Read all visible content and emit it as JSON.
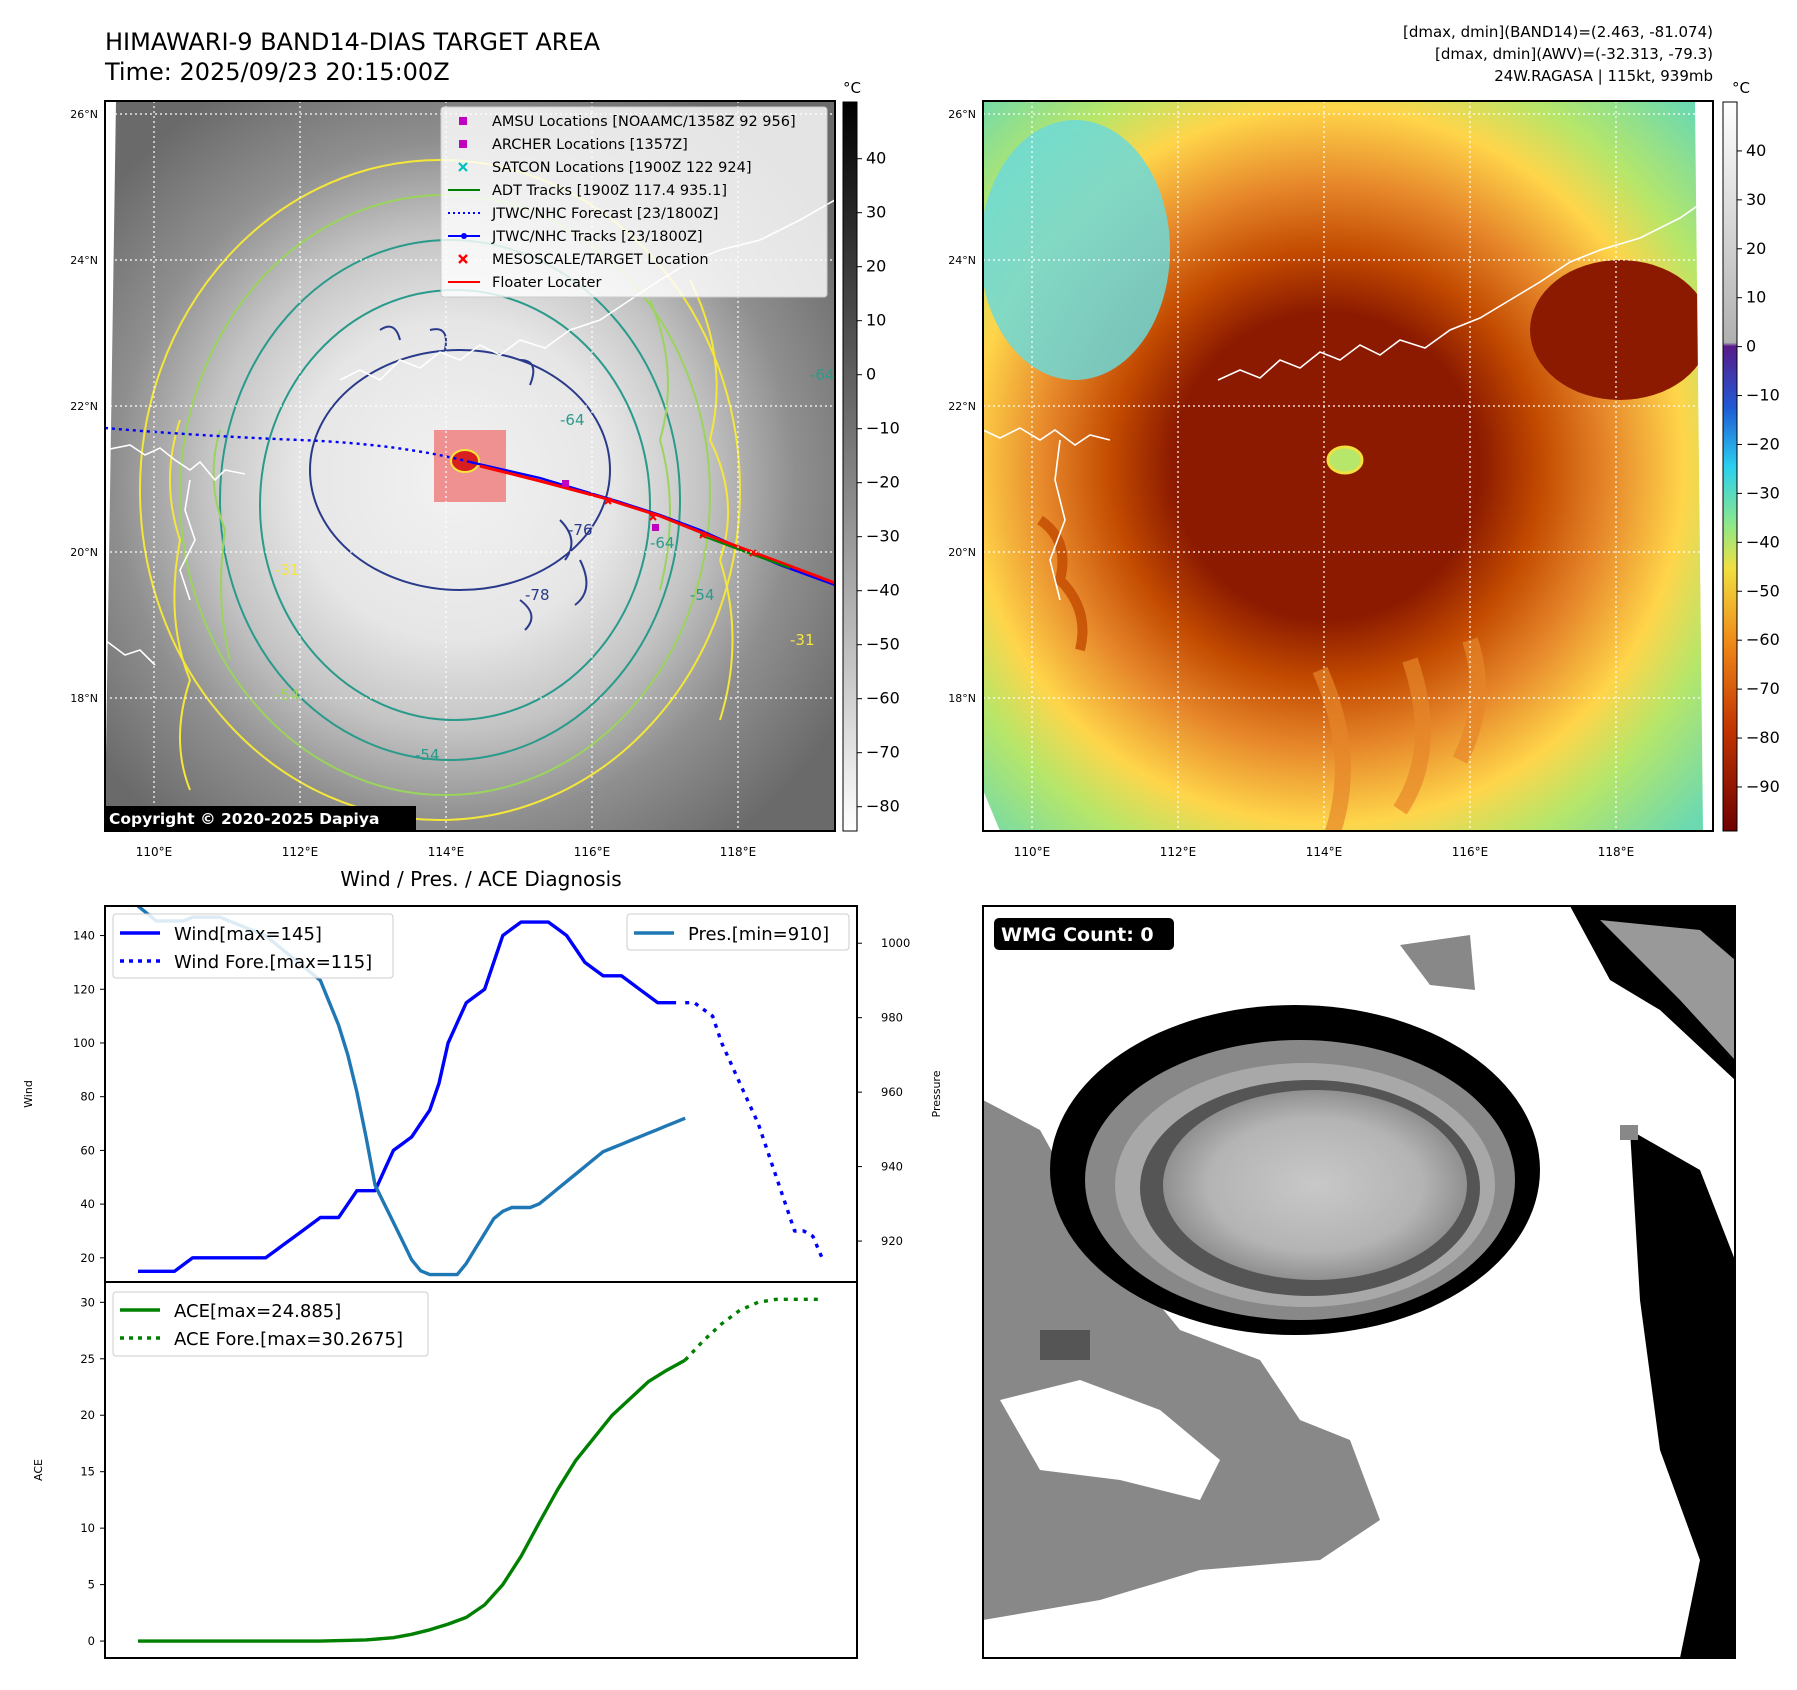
{
  "header": {
    "title_line1": "HIMAWARI-9 BAND14-DIAS TARGET AREA",
    "title_line2": "Time: 2025/09/23 20:15:00Z",
    "info_line1": "[dmax, dmin](BAND14)=(2.463, -81.074)",
    "info_line2": "[dmax, dmin](AWV)=(-32.313, -79.3)",
    "info_line3": "24W.RAGASA | 115kt, 939mb"
  },
  "map_panel": {
    "copyright": "Copyright © 2020-2025 Dapiya",
    "lat_labels": [
      "26°N",
      "24°N",
      "22°N",
      "20°N",
      "18°N"
    ],
    "lon_labels": [
      "110°E",
      "112°E",
      "114°E",
      "116°E",
      "118°E"
    ],
    "legend": [
      {
        "label": "AMSU Locations [NOAAMC/1358Z 92 956]",
        "marker": "square",
        "color": "#bf00bf"
      },
      {
        "label": "ARCHER Locations [1357Z]",
        "marker": "square",
        "color": "#bf00bf"
      },
      {
        "label": "SATCON Locations [1900Z 122 924]",
        "marker": "x",
        "color": "#00bfbf"
      },
      {
        "label": "ADT Tracks [1900Z 117.4 935.1]",
        "marker": "line",
        "color": "#008000"
      },
      {
        "label": "JTWC/NHC Forecast [23/1800Z]",
        "marker": "dotted",
        "color": "#0000ff"
      },
      {
        "label": "JTWC/NHC Tracks [23/1800Z]",
        "marker": "dotline",
        "color": "#0000ff"
      },
      {
        "label": "MESOSCALE/TARGET Location",
        "marker": "x",
        "color": "#ff0000"
      },
      {
        "label": "Floater Locater",
        "marker": "line",
        "color": "#ff0000"
      }
    ],
    "contour_labels": [
      "-64",
      "-76",
      "-64",
      "-54",
      "-78",
      "-54",
      "-31",
      "-31",
      "-54",
      "-64"
    ]
  },
  "colorbar_gray": {
    "unit": "°C",
    "ticks": [
      "40",
      "30",
      "20",
      "10",
      "0",
      "−10",
      "−20",
      "−30",
      "−40",
      "−50",
      "−60",
      "−70",
      "−80"
    ]
  },
  "colorbar_color": {
    "unit": "°C",
    "ticks": [
      "40",
      "30",
      "20",
      "10",
      "0",
      "−10",
      "−20",
      "−30",
      "−40",
      "−50",
      "−60",
      "−70",
      "−80",
      "−90"
    ]
  },
  "wmg_panel": {
    "badge": "WMG Count: 0"
  },
  "chart_data": [
    {
      "type": "line",
      "title": "Wind / Pres. / ACE Diagnosis",
      "ylabel": "Wind",
      "y2label": "Pressure",
      "ylim": [
        11,
        151
      ],
      "y2lim": [
        909,
        1010
      ],
      "yticks": [
        20,
        40,
        60,
        80,
        100,
        120,
        140
      ],
      "y2ticks": [
        920,
        940,
        960,
        980,
        1000
      ],
      "series": [
        {
          "name": "Wind[max=145]",
          "color": "#0000ff",
          "style": "solid",
          "x": [
            0,
            1,
            2,
            3,
            4,
            5,
            6,
            7,
            8,
            9,
            10,
            11,
            12,
            13,
            14,
            15,
            16,
            17,
            18,
            19,
            20,
            21,
            22,
            23,
            24,
            25,
            26,
            27,
            28,
            29,
            30,
            31,
            32,
            33,
            34,
            35,
            36,
            37,
            38,
            39,
            40,
            41,
            42,
            43,
            44,
            45,
            46,
            47,
            48,
            49,
            50,
            51,
            52,
            53,
            54,
            55,
            56,
            57,
            58,
            59,
            60,
            61,
            62,
            63,
            64,
            65,
            66,
            67,
            68,
            69,
            70
          ],
          "values": [
            15,
            15,
            15,
            15,
            15,
            17.5,
            20,
            20,
            20,
            20,
            20,
            20,
            20,
            20,
            20,
            22.5,
            25,
            27.5,
            30,
            32.5,
            35,
            35,
            35,
            40,
            45,
            45,
            45,
            52.5,
            60,
            62.5,
            65,
            70,
            75,
            85,
            100,
            107.5,
            115,
            117.5,
            120,
            130,
            140,
            142.5,
            145,
            145,
            145,
            145,
            142.5,
            140,
            135,
            130,
            127.5,
            125,
            125,
            125,
            122.5,
            120,
            117.5,
            115,
            115,
            115,
            null,
            null,
            null,
            null,
            null,
            null,
            null,
            null,
            null,
            null,
            null
          ]
        },
        {
          "name": "Wind Fore.[max=115]",
          "color": "#0000ff",
          "style": "dotted",
          "x": [
            60,
            61,
            62,
            63,
            64,
            65,
            66,
            67,
            68,
            69,
            70,
            71,
            72,
            73,
            74,
            75
          ],
          "values": [
            115,
            115,
            112.5,
            110,
            100,
            92.5,
            85,
            77.5,
            70,
            60,
            50,
            40,
            30,
            30,
            28,
            20
          ]
        },
        {
          "name": "Pres.[min=910]",
          "color": "#1f77b4",
          "style": "solid",
          "axis": "right",
          "x": [
            0,
            1,
            2,
            3,
            4,
            5,
            6,
            7,
            8,
            9,
            10,
            11,
            12,
            13,
            14,
            15,
            16,
            17,
            18,
            19,
            20,
            21,
            22,
            23,
            24,
            25,
            26,
            27,
            28,
            29,
            30,
            31,
            32,
            33,
            34,
            35,
            36,
            37,
            38,
            39,
            40,
            41,
            42,
            43,
            44,
            45,
            46,
            47,
            48,
            49,
            50,
            51,
            52,
            53,
            54,
            55,
            56,
            57,
            58,
            59,
            60
          ],
          "values": [
            1010,
            1008,
            1006,
            1006,
            1006,
            1006,
            1007,
            1007,
            1007,
            1007,
            1006,
            1005,
            1004,
            1003,
            1002,
            1000,
            998,
            996,
            994,
            992,
            990,
            984,
            978,
            970,
            960,
            948,
            935,
            930,
            925,
            920,
            915,
            912,
            911,
            911,
            911,
            911,
            914,
            918,
            922,
            926,
            928,
            929,
            929,
            929,
            930,
            932,
            934,
            936,
            938,
            940,
            942,
            944,
            945,
            946,
            947,
            948,
            949,
            950,
            951,
            952,
            953
          ]
        }
      ]
    },
    {
      "type": "line",
      "ylabel": "ACE",
      "ylim": [
        -1.5,
        31.8
      ],
      "yticks": [
        0,
        5,
        10,
        15,
        20,
        25,
        30
      ],
      "series": [
        {
          "name": "ACE[max=24.885]",
          "color": "#008000",
          "style": "solid",
          "x": [
            0,
            5,
            10,
            15,
            20,
            25,
            28,
            30,
            32,
            34,
            36,
            38,
            40,
            42,
            44,
            46,
            48,
            50,
            52,
            54,
            56,
            58,
            60
          ],
          "values": [
            0,
            0,
            0,
            0,
            0,
            0.1,
            0.3,
            0.6,
            1.0,
            1.5,
            2.1,
            3.2,
            5.0,
            7.5,
            10.5,
            13.4,
            16.0,
            18.0,
            20.0,
            21.5,
            23.0,
            24.0,
            24.885
          ]
        },
        {
          "name": "ACE Fore.[max=30.2675]",
          "color": "#008000",
          "style": "dotted",
          "x": [
            60,
            62,
            64,
            66,
            68,
            70,
            72,
            75
          ],
          "values": [
            24.885,
            26.6,
            28.1,
            29.3,
            30.0,
            30.2675,
            30.2675,
            30.2675
          ]
        }
      ]
    }
  ]
}
